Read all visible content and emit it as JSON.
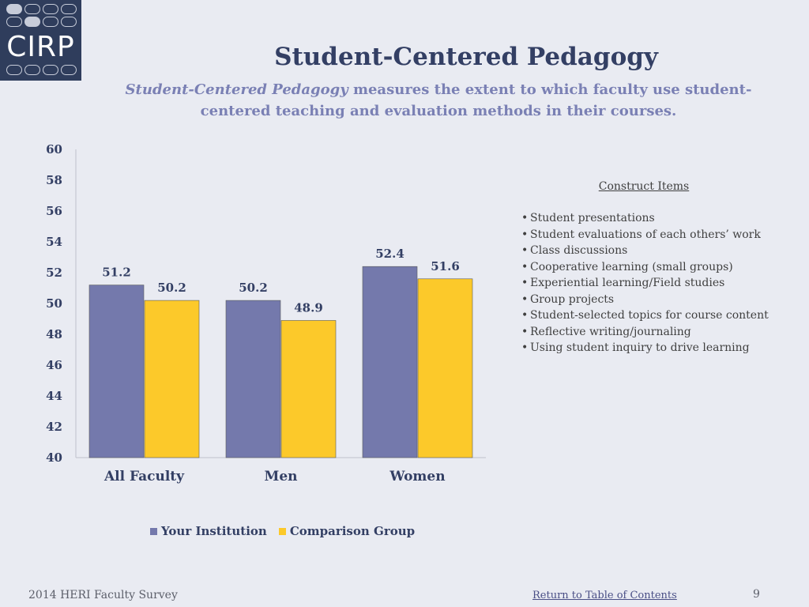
{
  "logo": {
    "text": "CIRP"
  },
  "slide": {
    "title": "Student-Centered Pedagogy",
    "subtitle_emphasis": "Student-Centered Pedagogy",
    "subtitle_rest": " measures the extent to which faculty use student-centered teaching and evaluation methods in their courses."
  },
  "construct": {
    "title": "Construct Items",
    "items": [
      "Student presentations",
      "Student evaluations of each others’ work",
      "Class discussions",
      "Cooperative learning (small groups)",
      "Experiential learning/Field studies",
      "Group projects",
      "Student-selected topics for course content",
      "Reflective writing/journaling",
      "Using student inquiry to drive learning"
    ]
  },
  "chart_data": {
    "type": "bar",
    "categories": [
      "All Faculty",
      "Men",
      "Women"
    ],
    "series": [
      {
        "name": "Your Institution",
        "values": [
          51.2,
          50.2,
          52.4
        ],
        "color": "#7479ac"
      },
      {
        "name": "Comparison Group",
        "values": [
          50.2,
          48.9,
          51.6
        ],
        "color": "#fcc92a"
      }
    ],
    "ylim": [
      40,
      60
    ],
    "yticks": [
      40,
      42,
      44,
      46,
      48,
      50,
      52,
      54,
      56,
      58,
      60
    ],
    "grid": false,
    "legend": "bottom"
  },
  "footer": {
    "left": "2014 HERI Faculty Survey",
    "link": "Return to Table of Contents",
    "page": "9"
  }
}
